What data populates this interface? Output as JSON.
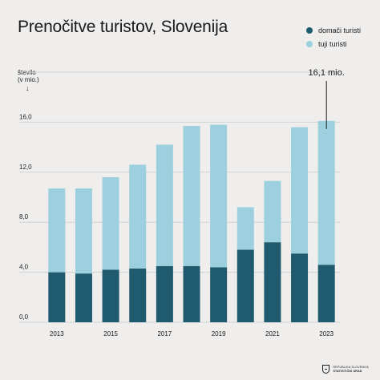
{
  "chart_data": {
    "type": "bar",
    "stacked": true,
    "title": "Prenočitve turistov, Slovenija",
    "ylabel_lines": [
      "število",
      "(v mio.)"
    ],
    "ylabel_arrow": "↓",
    "categories": [
      "2013",
      "2014",
      "2015",
      "2016",
      "2017",
      "2018",
      "2019",
      "2020",
      "2021",
      "2022",
      "2023"
    ],
    "x_tick_labels": [
      "2013",
      "",
      "2015",
      "",
      "2017",
      "",
      "2019",
      "",
      "2021",
      "",
      "2023"
    ],
    "series": [
      {
        "name": "domači turisti",
        "color": "#1f5a6e",
        "values": [
          4.0,
          3.9,
          4.2,
          4.3,
          4.5,
          4.5,
          4.4,
          5.8,
          6.4,
          5.5,
          4.6
        ]
      },
      {
        "name": "tuji turisti",
        "color": "#9dd0de",
        "values": [
          6.7,
          6.8,
          7.4,
          8.3,
          9.7,
          11.2,
          11.4,
          3.4,
          4.9,
          10.1,
          11.5
        ]
      }
    ],
    "yticks": [
      0,
      4,
      8,
      12,
      16
    ],
    "ytick_labels": [
      "0,0",
      "4,0",
      "8,0",
      "12,0",
      "16,0"
    ],
    "ylim": [
      0,
      20
    ],
    "grid": true,
    "legend_position": "top-right",
    "annotation": {
      "category": "2023",
      "text": "16,1 mio."
    }
  },
  "footer": {
    "logo_line1": "REPUBLIKA SLOVENIJA",
    "logo_line2": "STATISTIČNI URAD"
  }
}
